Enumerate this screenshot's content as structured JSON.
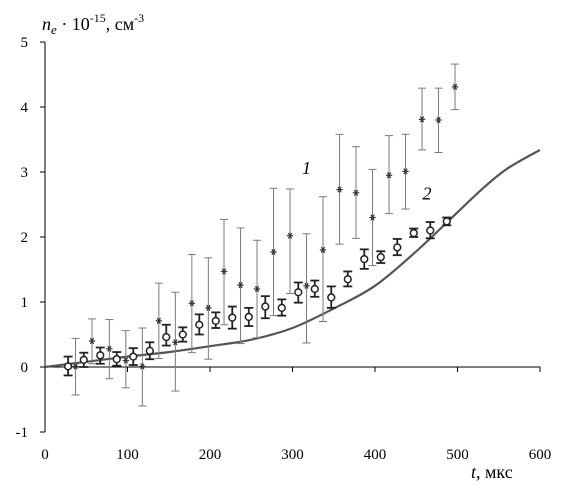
{
  "chart_data": {
    "type": "scatter",
    "x_axis": {
      "label_var": "t",
      "label_unit": ", мкс",
      "range": [
        0,
        600
      ],
      "ticks": [
        0,
        100,
        200,
        300,
        400,
        500,
        600
      ],
      "tick_labels": [
        "0",
        "100",
        "200",
        "300",
        "400",
        "500",
        "600"
      ]
    },
    "y_axis": {
      "label_var": "n",
      "label_sub": "e",
      "label_mid": " · 10",
      "label_exp": "-15",
      "label_unit": ", см",
      "label_unit_exp": "-3",
      "range": [
        -1,
        5
      ],
      "ticks": [
        -1,
        0,
        1,
        2,
        3,
        4,
        5
      ],
      "tick_labels": [
        "-1",
        "0",
        "1",
        "2",
        "3",
        "4",
        "5"
      ]
    },
    "grid": false,
    "series_labels": [
      {
        "text": "1",
        "at": [
          317,
          2.97
        ]
      },
      {
        "text": "2",
        "at": [
          463,
          2.58
        ]
      }
    ],
    "series": [
      {
        "marker": "asterisk",
        "color": "#333333",
        "points": [
          {
            "x": 37,
            "y": 0.01,
            "lo": -0.43,
            "hi": 0.44
          },
          {
            "x": 57,
            "y": 0.4,
            "lo": 0.05,
            "hi": 0.74
          },
          {
            "x": 78,
            "y": 0.28,
            "lo": -0.18,
            "hi": 0.73
          },
          {
            "x": 98,
            "y": 0.1,
            "lo": -0.32,
            "hi": 0.56
          },
          {
            "x": 118,
            "y": 0.01,
            "lo": -0.6,
            "hi": 0.6
          },
          {
            "x": 138,
            "y": 0.71,
            "lo": 0.13,
            "hi": 1.29
          },
          {
            "x": 158,
            "y": 0.38,
            "lo": -0.37,
            "hi": 1.15
          },
          {
            "x": 178,
            "y": 0.98,
            "lo": 0.22,
            "hi": 1.73
          },
          {
            "x": 198,
            "y": 0.91,
            "lo": 0.12,
            "hi": 1.68
          },
          {
            "x": 217,
            "y": 1.47,
            "lo": 0.65,
            "hi": 2.27
          },
          {
            "x": 237,
            "y": 1.26,
            "lo": 0.36,
            "hi": 2.14
          },
          {
            "x": 257,
            "y": 1.2,
            "lo": 0.45,
            "hi": 1.95
          },
          {
            "x": 277,
            "y": 1.77,
            "lo": 0.79,
            "hi": 2.75
          },
          {
            "x": 297,
            "y": 2.02,
            "lo": 1.13,
            "hi": 2.74
          },
          {
            "x": 317,
            "y": 1.25,
            "lo": 0.37,
            "hi": 2.05
          },
          {
            "x": 337,
            "y": 1.8,
            "lo": 0.7,
            "hi": 2.62
          },
          {
            "x": 357,
            "y": 2.73,
            "lo": 1.89,
            "hi": 3.58
          },
          {
            "x": 377,
            "y": 2.68,
            "lo": 1.98,
            "hi": 3.39
          },
          {
            "x": 397,
            "y": 2.3,
            "lo": 1.56,
            "hi": 3.04
          },
          {
            "x": 417,
            "y": 2.95,
            "lo": 2.36,
            "hi": 3.56
          },
          {
            "x": 437,
            "y": 3.01,
            "lo": 2.43,
            "hi": 3.58
          },
          {
            "x": 457,
            "y": 3.81,
            "lo": 3.34,
            "hi": 4.29
          },
          {
            "x": 477,
            "y": 3.8,
            "lo": 3.3,
            "hi": 4.29
          },
          {
            "x": 497,
            "y": 4.31,
            "lo": 3.96,
            "hi": 4.66
          }
        ]
      },
      {
        "marker": "circle",
        "color": "#222222",
        "points": [
          {
            "x": 28,
            "y": 0.01,
            "lo": -0.13,
            "hi": 0.16
          },
          {
            "x": 47,
            "y": 0.11,
            "lo": 0.0,
            "hi": 0.22
          },
          {
            "x": 67,
            "y": 0.18,
            "lo": 0.05,
            "hi": 0.3
          },
          {
            "x": 87,
            "y": 0.12,
            "lo": 0.02,
            "hi": 0.23
          },
          {
            "x": 107,
            "y": 0.16,
            "lo": 0.03,
            "hi": 0.29
          },
          {
            "x": 127,
            "y": 0.25,
            "lo": 0.12,
            "hi": 0.38
          },
          {
            "x": 147,
            "y": 0.46,
            "lo": 0.33,
            "hi": 0.65
          },
          {
            "x": 167,
            "y": 0.5,
            "lo": 0.39,
            "hi": 0.61
          },
          {
            "x": 187,
            "y": 0.65,
            "lo": 0.5,
            "hi": 0.81
          },
          {
            "x": 207,
            "y": 0.71,
            "lo": 0.6,
            "hi": 0.84
          },
          {
            "x": 227,
            "y": 0.76,
            "lo": 0.59,
            "hi": 0.93
          },
          {
            "x": 247,
            "y": 0.77,
            "lo": 0.63,
            "hi": 0.91
          },
          {
            "x": 267,
            "y": 0.93,
            "lo": 0.75,
            "hi": 1.09
          },
          {
            "x": 287,
            "y": 0.91,
            "lo": 0.79,
            "hi": 1.04
          },
          {
            "x": 307,
            "y": 1.15,
            "lo": 0.99,
            "hi": 1.3
          },
          {
            "x": 327,
            "y": 1.2,
            "lo": 1.08,
            "hi": 1.33
          },
          {
            "x": 347,
            "y": 1.07,
            "lo": 0.91,
            "hi": 1.24
          },
          {
            "x": 367,
            "y": 1.35,
            "lo": 1.24,
            "hi": 1.47
          },
          {
            "x": 387,
            "y": 1.66,
            "lo": 1.51,
            "hi": 1.81
          },
          {
            "x": 407,
            "y": 1.69,
            "lo": 1.6,
            "hi": 1.78
          },
          {
            "x": 427,
            "y": 1.84,
            "lo": 1.72,
            "hi": 1.97
          },
          {
            "x": 447,
            "y": 2.06,
            "lo": 2.0,
            "hi": 2.13
          },
          {
            "x": 467,
            "y": 2.1,
            "lo": 1.98,
            "hi": 2.23
          },
          {
            "x": 487,
            "y": 2.24,
            "lo": 2.18,
            "hi": 2.3
          }
        ]
      }
    ],
    "curve": {
      "color": "#555555",
      "points": [
        [
          0,
          0.0
        ],
        [
          50,
          0.08
        ],
        [
          100,
          0.16
        ],
        [
          150,
          0.23
        ],
        [
          200,
          0.32
        ],
        [
          250,
          0.42
        ],
        [
          300,
          0.6
        ],
        [
          350,
          0.9
        ],
        [
          400,
          1.25
        ],
        [
          450,
          1.78
        ],
        [
          500,
          2.38
        ],
        [
          530,
          2.74
        ],
        [
          560,
          3.05
        ],
        [
          600,
          3.34
        ]
      ]
    }
  }
}
